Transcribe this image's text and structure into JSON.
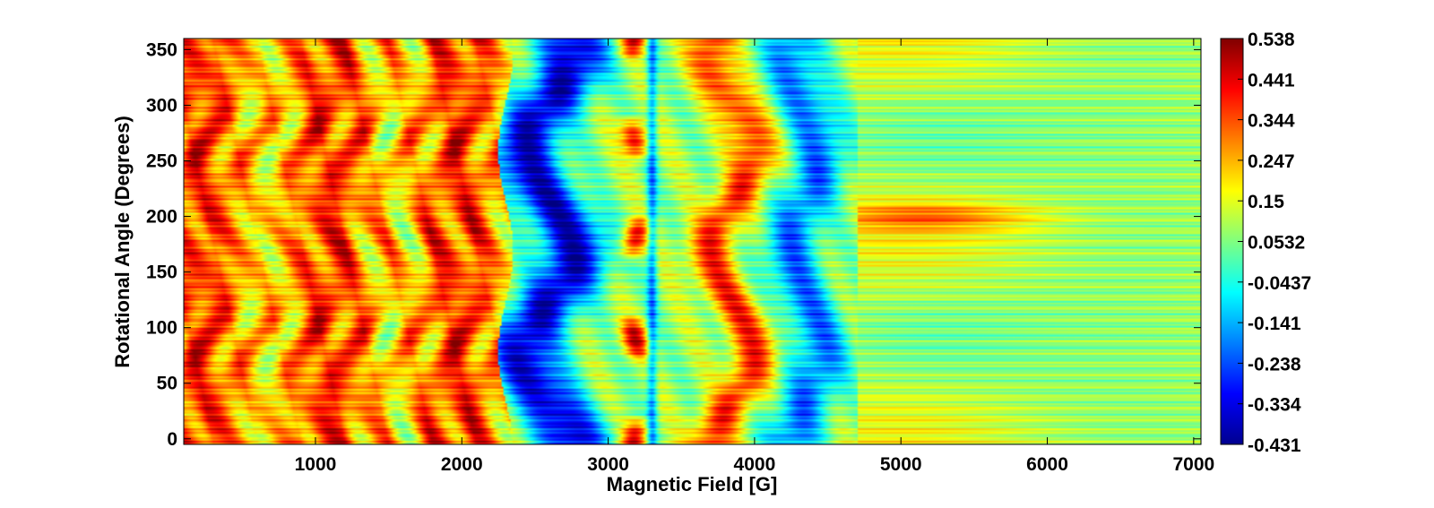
{
  "chart_data": {
    "type": "heatmap",
    "xlabel": "Magnetic Field [G]",
    "ylabel": "Rotational Angle (Degrees)",
    "x_ticks": [
      1000,
      2000,
      3000,
      4000,
      5000,
      6000,
      7000
    ],
    "y_ticks": [
      0,
      50,
      100,
      150,
      200,
      250,
      300,
      350
    ],
    "xlim": [
      100,
      7050
    ],
    "ylim": [
      -5,
      360
    ],
    "colorbar": {
      "min": -0.431,
      "max": 0.538,
      "colormap": "jet",
      "ticks": [
        "0.538",
        "0.441",
        "0.344",
        "0.247",
        "0.15",
        "0.0532",
        "-0.0437",
        "-0.141",
        "-0.238",
        "-0.334",
        "-0.431"
      ]
    },
    "grid": false
  }
}
